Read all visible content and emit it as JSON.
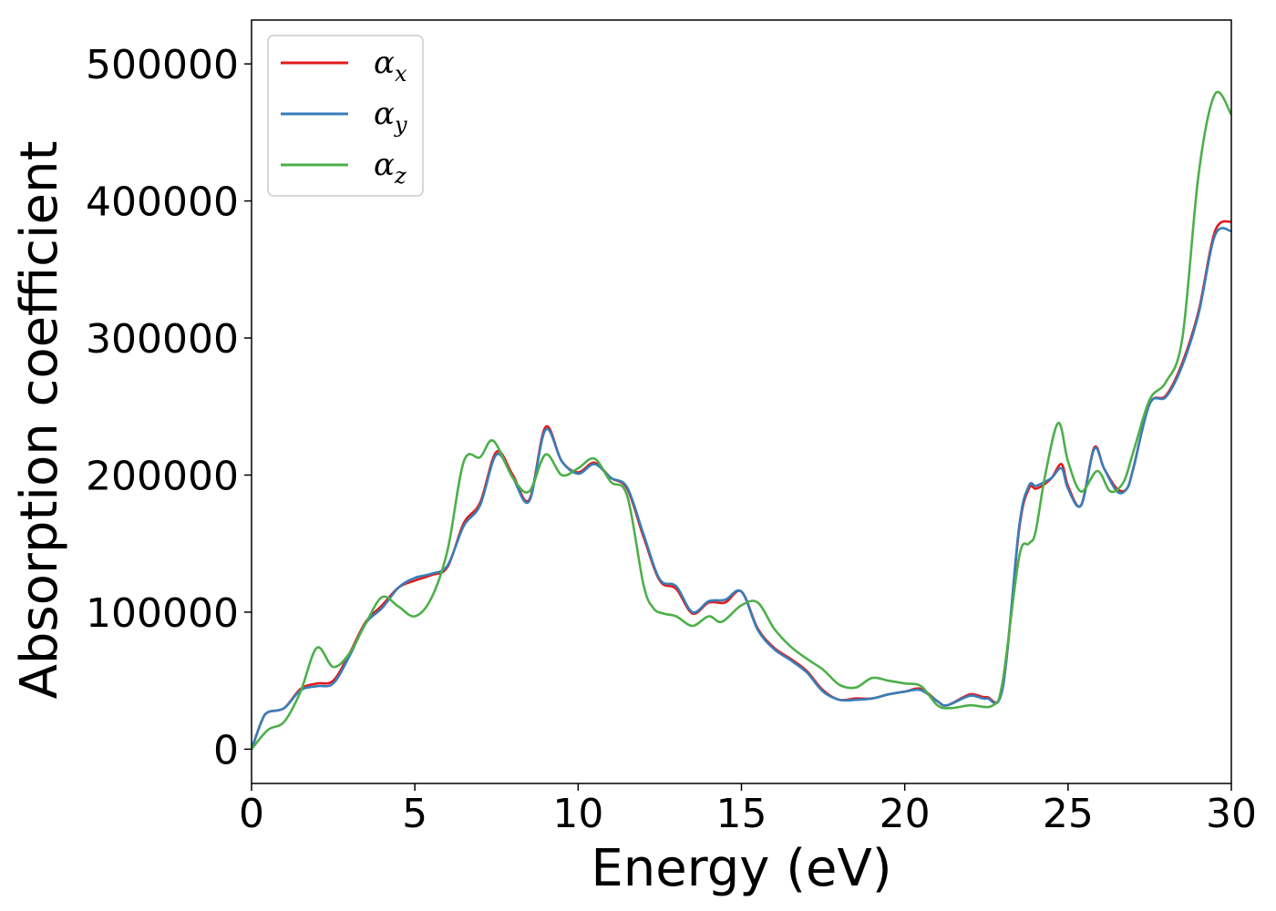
{
  "chart_data": {
    "type": "line",
    "title": "",
    "xlabel": "Energy (eV)",
    "ylabel": "Absorption coefficient",
    "xlim": [
      0,
      30
    ],
    "ylim": [
      -25000,
      532000
    ],
    "xticks": [
      0,
      5,
      10,
      15,
      20,
      25,
      30
    ],
    "yticks": [
      0,
      100000,
      200000,
      300000,
      400000,
      500000
    ],
    "grid": false,
    "legend_position": "top-left",
    "series": [
      {
        "name": "αx",
        "symbol": "α",
        "subscript": "x",
        "color": "#e41a1c",
        "x": [
          0,
          0.3,
          0.5,
          1.0,
          1.5,
          2.0,
          2.5,
          3.0,
          3.5,
          4.0,
          4.5,
          5.0,
          5.5,
          6.0,
          6.5,
          7.0,
          7.5,
          8.0,
          8.5,
          9.0,
          9.5,
          10.0,
          10.5,
          11.0,
          11.5,
          12.0,
          12.5,
          13.0,
          13.5,
          14.0,
          14.5,
          15.0,
          15.5,
          16.0,
          16.5,
          17.0,
          17.5,
          18.0,
          18.5,
          19.0,
          19.5,
          20.0,
          20.5,
          21.0,
          21.3,
          22.0,
          22.5,
          23.0,
          23.5,
          23.8,
          24.0,
          24.2,
          24.5,
          24.8,
          25.0,
          25.4,
          25.8,
          26.1,
          26.5,
          26.8,
          27.0,
          27.5,
          28.0,
          28.5,
          29.0,
          29.5,
          30.0
        ],
        "y": [
          0,
          20000,
          27000,
          30000,
          44000,
          48000,
          50000,
          70000,
          93000,
          105000,
          118000,
          123000,
          127000,
          133000,
          165000,
          180000,
          217000,
          200000,
          182000,
          235000,
          210000,
          202000,
          209000,
          198000,
          190000,
          155000,
          123000,
          117000,
          99000,
          107000,
          107000,
          115000,
          88000,
          74000,
          66000,
          57000,
          43000,
          36000,
          37000,
          37000,
          40000,
          42000,
          44000,
          35000,
          32000,
          40000,
          38000,
          45000,
          160000,
          190000,
          190000,
          192000,
          198000,
          208000,
          192000,
          178000,
          220000,
          205000,
          190000,
          190000,
          205000,
          252000,
          258000,
          282000,
          320000,
          378000,
          385000
        ]
      },
      {
        "name": "αy",
        "symbol": "α",
        "subscript": "y",
        "color": "#377eb8",
        "x": [
          0,
          0.3,
          0.5,
          1.0,
          1.5,
          2.0,
          2.5,
          3.0,
          3.5,
          4.0,
          4.5,
          5.0,
          5.5,
          6.0,
          6.5,
          7.0,
          7.5,
          8.0,
          8.5,
          9.0,
          9.5,
          10.0,
          10.5,
          11.0,
          11.5,
          12.0,
          12.5,
          13.0,
          13.5,
          14.0,
          14.5,
          15.0,
          15.5,
          16.0,
          16.5,
          17.0,
          17.5,
          18.0,
          18.5,
          19.0,
          19.5,
          20.0,
          20.5,
          21.0,
          21.3,
          22.0,
          22.5,
          23.0,
          23.5,
          23.8,
          24.0,
          24.2,
          24.5,
          24.8,
          25.0,
          25.4,
          25.8,
          26.1,
          26.5,
          26.8,
          27.0,
          27.5,
          28.0,
          28.5,
          29.0,
          29.5,
          30.0
        ],
        "y": [
          0,
          20000,
          27000,
          30000,
          43000,
          46000,
          48000,
          68000,
          92000,
          103000,
          118000,
          125000,
          128000,
          134000,
          163000,
          178000,
          215000,
          198000,
          181000,
          233000,
          210000,
          201000,
          208000,
          198000,
          191000,
          157000,
          124000,
          119000,
          100000,
          108000,
          109000,
          115000,
          87000,
          73000,
          65000,
          56000,
          42000,
          36000,
          36000,
          37000,
          40000,
          42000,
          43000,
          35000,
          32000,
          39000,
          37000,
          45000,
          162000,
          192000,
          192000,
          194000,
          198000,
          205000,
          190000,
          178000,
          219000,
          205000,
          188000,
          190000,
          205000,
          252000,
          257000,
          280000,
          318000,
          375000,
          378000
        ]
      },
      {
        "name": "αz",
        "symbol": "α",
        "subscript": "z",
        "color": "#4daf4a",
        "x": [
          0,
          0.5,
          1.0,
          1.5,
          2.0,
          2.5,
          3.0,
          3.5,
          4.0,
          4.5,
          5.0,
          5.5,
          6.0,
          6.5,
          7.0,
          7.4,
          8.0,
          8.5,
          9.0,
          9.5,
          10.0,
          10.5,
          11.0,
          11.5,
          12.0,
          12.3,
          12.6,
          13.0,
          13.5,
          14.0,
          14.4,
          15.0,
          15.5,
          16.0,
          16.5,
          17.0,
          17.5,
          18.0,
          18.5,
          19.0,
          19.5,
          20.0,
          20.5,
          21.0,
          21.4,
          22.0,
          22.7,
          23.0,
          23.5,
          23.8,
          24.0,
          24.3,
          24.7,
          25.0,
          25.4,
          25.9,
          26.3,
          26.7,
          27.0,
          27.5,
          28.0,
          28.5,
          29.0,
          29.5,
          30.0
        ],
        "y": [
          0,
          14000,
          20000,
          42000,
          74000,
          60000,
          70000,
          92000,
          111000,
          104000,
          97000,
          110000,
          145000,
          210000,
          213000,
          225000,
          198000,
          188000,
          215000,
          200000,
          205000,
          212000,
          195000,
          185000,
          120000,
          103000,
          99000,
          97000,
          90000,
          97000,
          93000,
          105000,
          107000,
          88000,
          75000,
          66000,
          58000,
          47000,
          45000,
          52000,
          50000,
          48000,
          46000,
          32000,
          30000,
          32000,
          32000,
          50000,
          140000,
          150000,
          158000,
          200000,
          238000,
          210000,
          188000,
          203000,
          188000,
          195000,
          217000,
          255000,
          268000,
          300000,
          420000,
          478000,
          463000
        ]
      }
    ]
  }
}
